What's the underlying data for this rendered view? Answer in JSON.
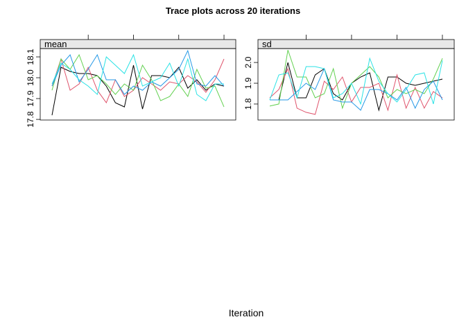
{
  "title": "Trace plots across 20 iterations",
  "x_label": "Iteration",
  "chart_data": [
    {
      "type": "line",
      "strip": "mean",
      "x": [
        1,
        2,
        3,
        4,
        5,
        6,
        7,
        8,
        9,
        10,
        11,
        12,
        13,
        14,
        15,
        16,
        17,
        18,
        19,
        20
      ],
      "xlim": [
        -0.3,
        21.3
      ],
      "xticks": [
        5,
        10,
        15,
        20
      ],
      "ylim": [
        17.797,
        18.14
      ],
      "yticks": [
        17.8,
        17.9,
        {
          "value": 18,
          "label": "18.0"
        },
        18.1
      ],
      "series": [
        {
          "color": "#000000",
          "values": [
            17.82,
            18.05,
            18.03,
            18.02,
            18.02,
            18.01,
            17.96,
            17.88,
            17.86,
            18.06,
            17.85,
            18.01,
            18.01,
            18.0,
            18.05,
            17.95,
            17.99,
            17.94,
            17.97,
            17.96
          ]
        },
        {
          "color": "#DF536B",
          "values": [
            17.96,
            18.09,
            17.94,
            17.97,
            18.05,
            17.94,
            17.88,
            17.99,
            17.91,
            17.94,
            18.0,
            17.97,
            17.94,
            17.98,
            17.97,
            18.01,
            17.98,
            17.93,
            17.99,
            18.09
          ]
        },
        {
          "color": "#61D04F",
          "values": [
            17.94,
            18.09,
            18.04,
            18.11,
            17.99,
            18.01,
            17.97,
            17.92,
            17.97,
            17.94,
            18.06,
            17.99,
            17.89,
            17.91,
            17.97,
            17.91,
            18.04,
            17.95,
            17.96,
            17.86
          ]
        },
        {
          "color": "#2297E6",
          "values": [
            17.96,
            18.06,
            18.11,
            17.98,
            18.04,
            18.11,
            17.99,
            17.99,
            17.92,
            17.96,
            17.94,
            17.98,
            17.96,
            18.0,
            18.04,
            18.13,
            17.97,
            17.96,
            18.01,
            17.96
          ]
        },
        {
          "color": "#28E2E5",
          "values": [
            17.97,
            18.07,
            18.04,
            17.99,
            17.96,
            17.92,
            18.1,
            18.06,
            18.02,
            18.11,
            17.96,
            17.98,
            18.0,
            18.07,
            17.96,
            18.09,
            17.92,
            17.89,
            17.97,
            17.97
          ]
        }
      ]
    },
    {
      "type": "line",
      "strip": "sd",
      "x": [
        1,
        2,
        3,
        4,
        5,
        6,
        7,
        8,
        9,
        10,
        11,
        12,
        13,
        14,
        15,
        16,
        17,
        18,
        19,
        20
      ],
      "xlim": [
        -0.3,
        21.3
      ],
      "xticks": [
        5,
        10,
        15,
        20
      ],
      "ylim": [
        1.723,
        2.067
      ],
      "yticks": [
        1.8,
        1.9,
        {
          "value": 2,
          "label": "2.0"
        }
      ],
      "series": [
        {
          "color": "#000000",
          "values": [
            1.82,
            1.82,
            2.0,
            1.83,
            1.83,
            1.94,
            1.97,
            1.85,
            1.82,
            1.9,
            1.93,
            1.95,
            1.77,
            1.93,
            1.93,
            1.9,
            1.89,
            1.9,
            1.91,
            1.92
          ]
        },
        {
          "color": "#DF536B",
          "values": [
            1.83,
            1.87,
            1.97,
            1.78,
            1.76,
            1.75,
            1.91,
            1.87,
            1.93,
            1.81,
            1.88,
            1.88,
            1.9,
            1.77,
            1.94,
            1.78,
            1.88,
            1.78,
            1.86,
            1.83
          ]
        },
        {
          "color": "#61D04F",
          "values": [
            1.79,
            1.8,
            2.06,
            1.93,
            1.93,
            1.83,
            1.85,
            1.97,
            1.78,
            1.9,
            1.94,
            1.98,
            1.93,
            1.83,
            1.87,
            1.85,
            1.87,
            1.85,
            1.92,
            2.02
          ]
        },
        {
          "color": "#2297E6",
          "values": [
            1.82,
            1.82,
            1.82,
            1.86,
            1.9,
            1.87,
            1.97,
            1.82,
            1.81,
            1.81,
            1.77,
            1.87,
            1.87,
            1.85,
            1.82,
            1.88,
            1.78,
            1.87,
            1.91,
            1.82
          ]
        },
        {
          "color": "#28E2E5",
          "values": [
            1.82,
            1.94,
            1.95,
            1.83,
            1.98,
            1.98,
            1.97,
            1.83,
            1.85,
            1.9,
            1.8,
            2.02,
            1.91,
            1.85,
            1.81,
            1.87,
            1.94,
            1.95,
            1.8,
            2.01
          ]
        }
      ]
    }
  ]
}
